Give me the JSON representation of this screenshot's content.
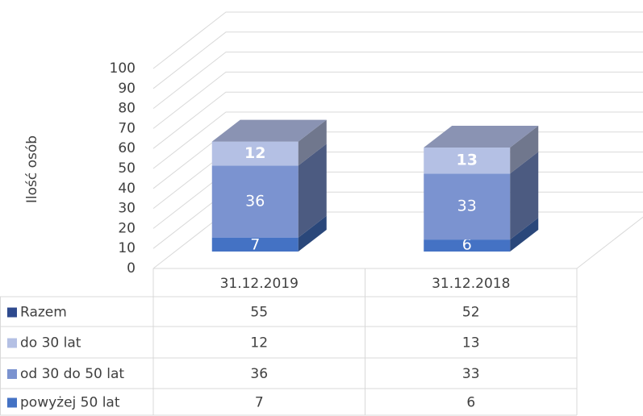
{
  "chart_data": {
    "type": "bar3d_stacked_table",
    "y_label": "Ilość osób",
    "categories": [
      "31.12.2019",
      "31.12.2018"
    ],
    "series": [
      {
        "name": "powyżej 50 lat",
        "color": "#4472c4",
        "values": [
          7,
          6
        ]
      },
      {
        "name": "od 30 do 50 lat",
        "color": "#7b93d0",
        "values": [
          36,
          33
        ]
      },
      {
        "name": "do 30 lat",
        "color": "#b4c0e4",
        "values": [
          12,
          13
        ],
        "label_bold": true
      },
      {
        "name": "Razem",
        "color": "#2e4a8e",
        "values": [
          55,
          52
        ],
        "show_bar": false
      }
    ],
    "ylim": [
      0,
      100
    ],
    "yticks": [
      0,
      10,
      20,
      30,
      40,
      50,
      60,
      70,
      80,
      90,
      100
    ],
    "grid": true
  }
}
